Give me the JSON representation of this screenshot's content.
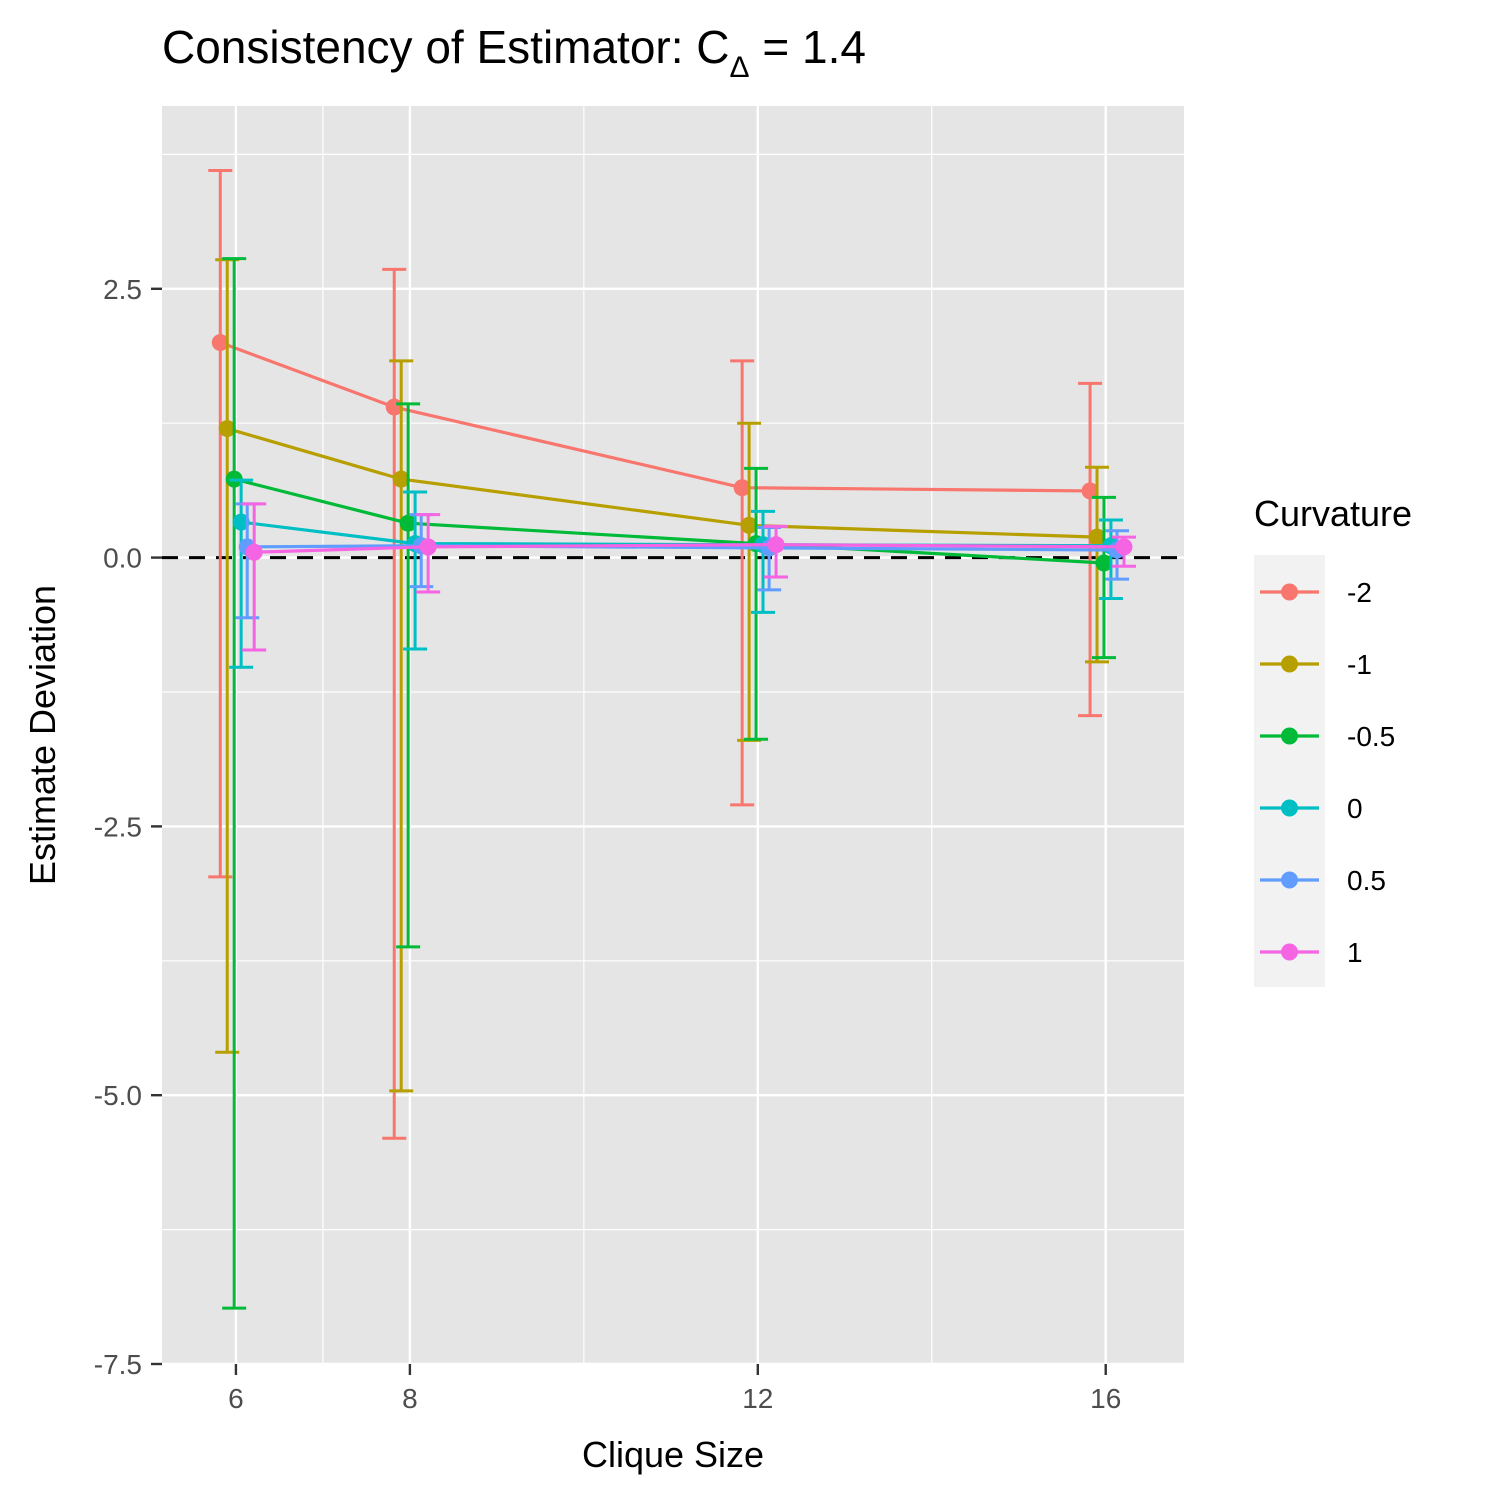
{
  "chart_data": {
    "type": "line",
    "title": "Consistency of Estimator: C",
    "title_subscript": "Δ",
    "title_suffix": " = 1.4",
    "xlabel": "Clique Size",
    "ylabel": "Estimate Deviation",
    "x": [
      6,
      8,
      12,
      16
    ],
    "x_ticks": [
      "6",
      "8",
      "12",
      "16"
    ],
    "y_ticks": [
      "2.5",
      "0.0",
      "-2.5",
      "-5.0",
      "-7.5"
    ],
    "y_tick_values": [
      2.5,
      0.0,
      -2.5,
      -5.0,
      -7.5
    ],
    "xlim": [
      5.15,
      16.9
    ],
    "ylim": [
      -7.5,
      4.2
    ],
    "reference_line": 0,
    "grid": true,
    "legend": {
      "title": "Curvature",
      "position": "right"
    },
    "series": [
      {
        "name": "-2",
        "color": "#F8766D",
        "dodge": -0.18,
        "values": [
          2.0,
          1.4,
          0.65,
          0.62
        ],
        "lower": [
          -2.97,
          -5.4,
          -2.3,
          -1.47
        ],
        "upper": [
          3.6,
          2.68,
          1.83,
          1.62
        ]
      },
      {
        "name": "-1",
        "color": "#B79F00",
        "dodge": -0.1,
        "values": [
          1.2,
          0.73,
          0.3,
          0.19
        ],
        "lower": [
          -4.6,
          -4.96,
          -1.7,
          -0.97
        ],
        "upper": [
          2.77,
          1.83,
          1.25,
          0.84
        ]
      },
      {
        "name": "-0.5",
        "color": "#00BA38",
        "dodge": -0.02,
        "values": [
          0.73,
          0.32,
          0.13,
          -0.05
        ],
        "lower": [
          -6.98,
          -3.62,
          -1.69,
          -0.93
        ],
        "upper": [
          2.78,
          1.43,
          0.83,
          0.56
        ]
      },
      {
        "name": "0",
        "color": "#00BFC4",
        "dodge": 0.06,
        "values": [
          0.33,
          0.13,
          0.12,
          0.11
        ],
        "lower": [
          -1.02,
          -0.85,
          -0.51,
          -0.38
        ],
        "upper": [
          0.72,
          0.61,
          0.43,
          0.35
        ]
      },
      {
        "name": "0.5",
        "color": "#619CFF",
        "dodge": 0.13,
        "values": [
          0.1,
          0.11,
          0.09,
          0.07
        ],
        "lower": [
          -0.56,
          -0.27,
          -0.3,
          -0.2
        ],
        "upper": [
          0.5,
          0.4,
          0.28,
          0.25
        ]
      },
      {
        "name": "1",
        "color": "#F564E3",
        "dodge": 0.21,
        "values": [
          0.05,
          0.1,
          0.12,
          0.1
        ],
        "lower": [
          -0.86,
          -0.32,
          -0.18,
          -0.08
        ],
        "upper": [
          0.5,
          0.4,
          0.29,
          0.19
        ]
      }
    ]
  }
}
